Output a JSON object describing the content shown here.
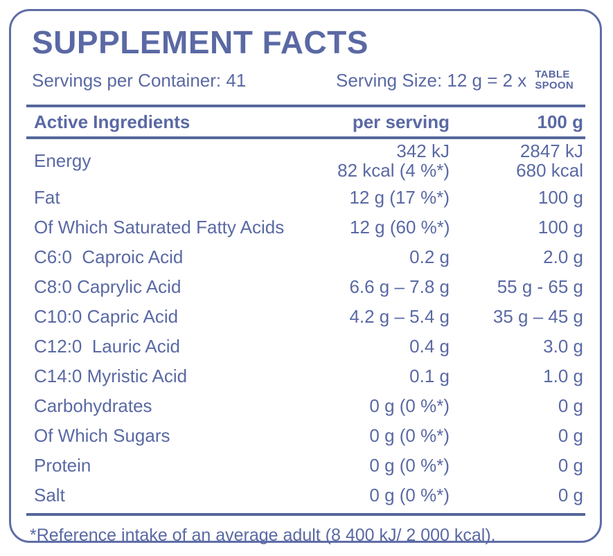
{
  "label": {
    "title": "SUPPLEMENT FACTS",
    "servings_per_container": "Servings per Container: 41",
    "serving_size": "Serving Size: 12 g = 2 x",
    "serving_size_unit_line1": "TABLE",
    "serving_size_unit_line2": "SPOON",
    "columns": {
      "ingredient": "Active Ingredients",
      "per_serving": "per serving",
      "per_100g": "100 g"
    },
    "rows": [
      {
        "name": "Energy",
        "per_serving": "342 kJ",
        "per_serving_line2": "82 kcal (4 %*)",
        "per_100g": "2847 kJ",
        "per_100g_line2": "680 kcal"
      },
      {
        "name": "Fat",
        "per_serving": "12 g (17 %*)",
        "per_100g": "100 g"
      },
      {
        "name": "Of Which Saturated Fatty Acids",
        "per_serving": "12 g (60 %*)",
        "per_100g": "100 g"
      },
      {
        "name": "C6:0  Caproic Acid",
        "per_serving": "0.2 g",
        "per_100g": "2.0 g"
      },
      {
        "name": "C8:0 Caprylic Acid",
        "per_serving": "6.6 g – 7.8 g",
        "per_100g": "55 g - 65 g"
      },
      {
        "name": "C10:0 Capric Acid",
        "per_serving": "4.2 g – 5.4 g",
        "per_100g": "35 g – 45 g"
      },
      {
        "name": "C12:0  Lauric Acid",
        "per_serving": "0.4 g",
        "per_100g": "3.0 g"
      },
      {
        "name": "C14:0 Myristic Acid",
        "per_serving": "0.1 g",
        "per_100g": "1.0 g"
      },
      {
        "name": "Carbohydrates",
        "per_serving": "0 g (0 %*)",
        "per_100g": "0 g"
      },
      {
        "name": "Of Which Sugars",
        "per_serving": "0 g (0 %*)",
        "per_100g": "0 g"
      },
      {
        "name": "Protein",
        "per_serving": "0 g (0 %*)",
        "per_100g": "0 g"
      },
      {
        "name": "Salt",
        "per_serving": "0 g (0 %*)",
        "per_100g": "0 g"
      }
    ],
    "footnote": "*Reference intake of an average adult (8 400 kJ/ 2 000 kcal).",
    "colors": {
      "text": "#5a69a4",
      "border": "#5f6da6",
      "rule": "#56679b",
      "background": "#ffffff"
    }
  }
}
